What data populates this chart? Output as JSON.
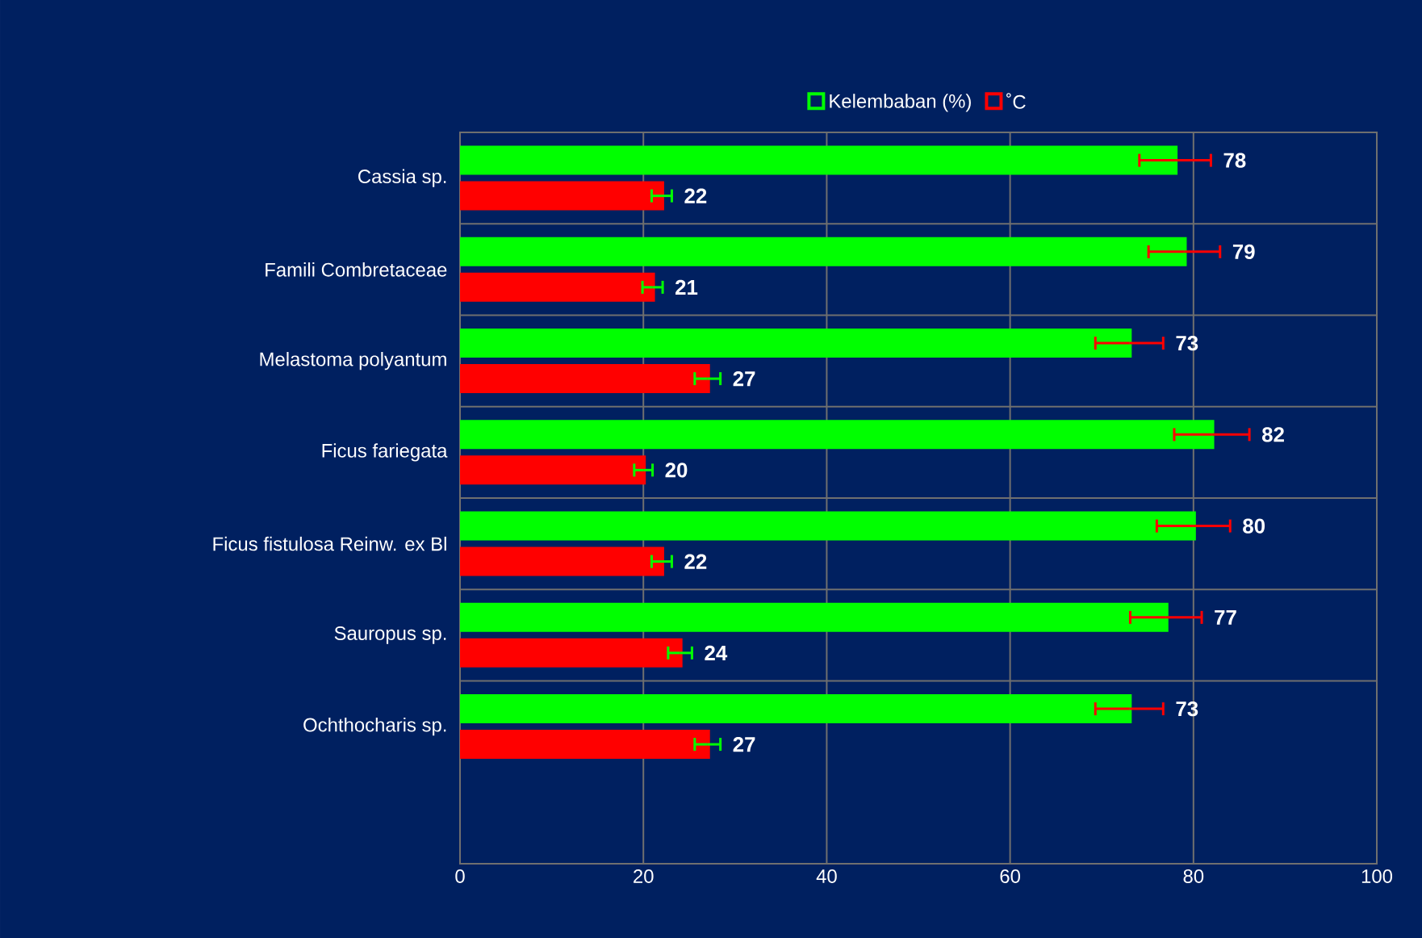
{
  "chart_data": {
    "type": "bar",
    "orientation": "horizontal",
    "categories": [
      "Cassia sp.",
      "Famili Combretaceae",
      "Melastoma polyantum",
      "Ficus fariegata",
      "Ficus fistulosa Reinw. ex Bl",
      "Sauropus sp.",
      "Ochthocharis sp."
    ],
    "series": [
      {
        "name": "Kelembaban (%)",
        "color": "#00ff00",
        "values": [
          78,
          79,
          73,
          82,
          80,
          77,
          73
        ],
        "errors": [
          3.9,
          3.9,
          3.7,
          4.1,
          4.0,
          3.9,
          3.7
        ]
      },
      {
        "name": "˚C",
        "color": "#ff0000",
        "values": [
          22,
          21,
          27,
          20,
          22,
          24,
          27
        ],
        "errors": [
          1.1,
          1.1,
          1.4,
          1.0,
          1.1,
          1.3,
          1.4
        ]
      }
    ],
    "xlim": [
      0,
      100
    ],
    "xticks": [
      0,
      20,
      40,
      60,
      80,
      100
    ],
    "grid": true,
    "legend": "top",
    "data_labels": true
  }
}
